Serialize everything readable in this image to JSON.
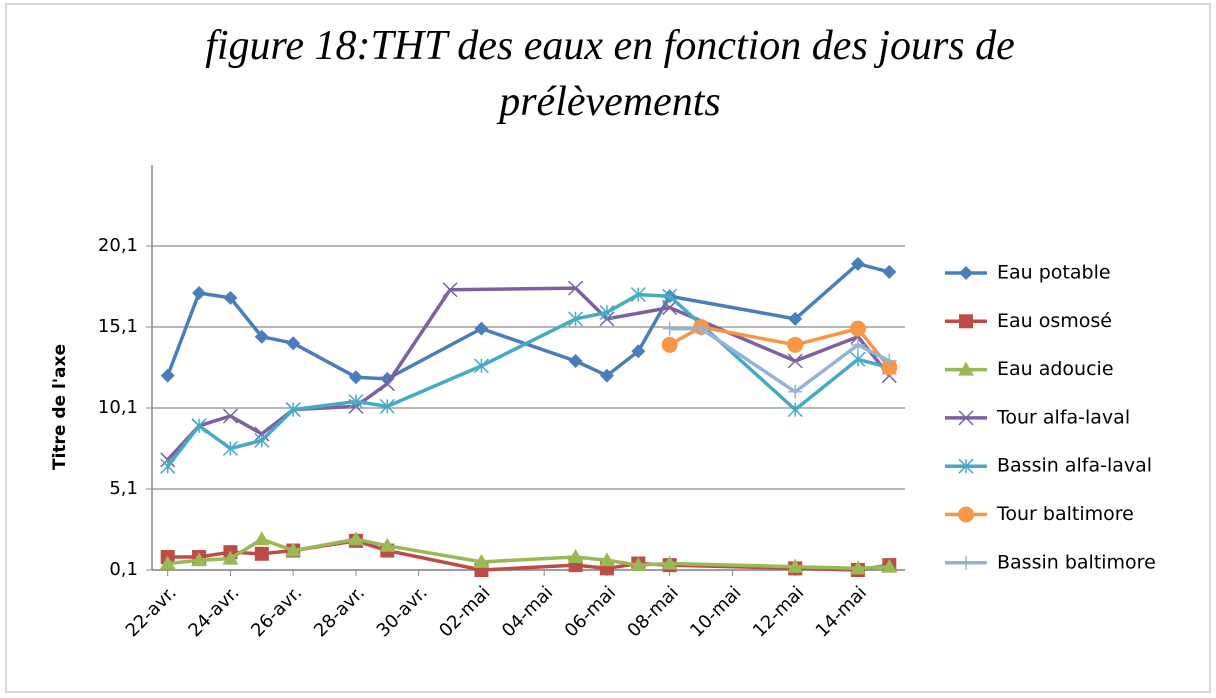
{
  "chart_data": {
    "type": "line",
    "title": "figure 18:THT des eaux en fonction des jours de prélèvements",
    "y_label": "Titre de l'axe",
    "ylim": [
      0.1,
      25.1
    ],
    "yticks": [
      {
        "value": 0.1,
        "label": "0,1"
      },
      {
        "value": 5.1,
        "label": "5,1"
      },
      {
        "value": 10.1,
        "label": "10,1"
      },
      {
        "value": 15.1,
        "label": "15,1"
      },
      {
        "value": 20.1,
        "label": "20,1"
      }
    ],
    "xlim": [
      "22-avr.",
      "15-mai"
    ],
    "xticks": [
      "22-avr.",
      "24-avr.",
      "26-avr.",
      "28-avr.",
      "30-avr.",
      "02-mai",
      "04-mai",
      "06-mai",
      "08-mai",
      "10-mai",
      "12-mai",
      "14-mai"
    ],
    "grid": true,
    "legend": "right",
    "series": [
      {
        "name": "Eau potable",
        "color": "#4a7ebb",
        "marker": "diamond",
        "x": [
          "22-avr.",
          "23-avr.",
          "24-avr.",
          "25-avr.",
          "26-avr.",
          "28-avr.",
          "29-avr.",
          "02-mai",
          "05-mai",
          "06-mai",
          "07-mai",
          "08-mai",
          "12-mai",
          "14-mai",
          "15-mai"
        ],
        "values": [
          12.1,
          17.2,
          16.9,
          14.5,
          14.1,
          12,
          11.9,
          15,
          13,
          12.1,
          13.6,
          17,
          15.6,
          19,
          18.5
        ]
      },
      {
        "name": "Eau osmosé",
        "color": "#be4b48",
        "marker": "square",
        "x": [
          "22-avr.",
          "23-avr.",
          "24-avr.",
          "25-avr.",
          "26-avr.",
          "28-avr.",
          "29-avr.",
          "02-mai",
          "05-mai",
          "06-mai",
          "07-mai",
          "08-mai",
          "12-mai",
          "14-mai",
          "15-mai"
        ],
        "values": [
          0.9,
          0.9,
          1.2,
          1.1,
          1.3,
          1.9,
          1.3,
          0.1,
          0.4,
          0.2,
          0.5,
          0.4,
          0.2,
          0.1,
          0.4
        ]
      },
      {
        "name": "Eau adoucie",
        "color": "#98b954",
        "marker": "triangle",
        "x": [
          "22-avr.",
          "23-avr.",
          "24-avr.",
          "25-avr.",
          "26-avr.",
          "28-avr.",
          "29-avr.",
          "02-mai",
          "05-mai",
          "06-mai",
          "07-mai",
          "08-mai",
          "12-mai",
          "14-mai",
          "15-mai"
        ],
        "values": [
          0.5,
          0.7,
          0.8,
          2,
          1.3,
          2,
          1.6,
          0.6,
          0.9,
          0.7,
          0.4,
          0.5,
          0.3,
          0.2,
          0.3
        ]
      },
      {
        "name": "Tour alfa-laval",
        "color": "#7d60a0",
        "marker": "x",
        "x": [
          "22-avr.",
          "23-avr.",
          "24-avr.",
          "25-avr.",
          "26-avr.",
          "28-avr.",
          "29-avr.",
          "01-mai",
          "05-mai",
          "06-mai",
          "08-mai",
          "12-mai",
          "14-mai",
          "15-mai"
        ],
        "values": [
          6.9,
          9,
          9.6,
          8.5,
          10,
          10.2,
          11.6,
          17.4,
          17.5,
          15.6,
          16.3,
          13,
          14.5,
          12.1
        ]
      },
      {
        "name": "Bassin alfa-laval",
        "color": "#46aac5",
        "marker": "star",
        "x": [
          "22-avr.",
          "23-avr.",
          "24-avr.",
          "25-avr.",
          "26-avr.",
          "28-avr.",
          "29-avr.",
          "02-mai",
          "05-mai",
          "06-mai",
          "07-mai",
          "08-mai",
          "12-mai",
          "14-mai",
          "15-mai"
        ],
        "values": [
          6.5,
          9,
          7.6,
          8.1,
          10,
          10.5,
          10.2,
          12.7,
          15.6,
          16,
          17.1,
          17,
          10,
          13.1,
          12.6
        ]
      },
      {
        "name": "Tour baltimore",
        "color": "#f79646",
        "marker": "circle",
        "x": [
          "08-mai",
          "09-mai",
          "12-mai",
          "14-mai",
          "15-mai"
        ],
        "values": [
          14,
          15.1,
          14,
          15,
          12.6
        ]
      },
      {
        "name": "Bassin baltimore",
        "color": "#95b3d7",
        "marker": "plus",
        "x": [
          "08-mai",
          "09-mai",
          "12-mai",
          "14-mai",
          "15-mai"
        ],
        "values": [
          15,
          15,
          11.1,
          14,
          13
        ]
      }
    ]
  }
}
